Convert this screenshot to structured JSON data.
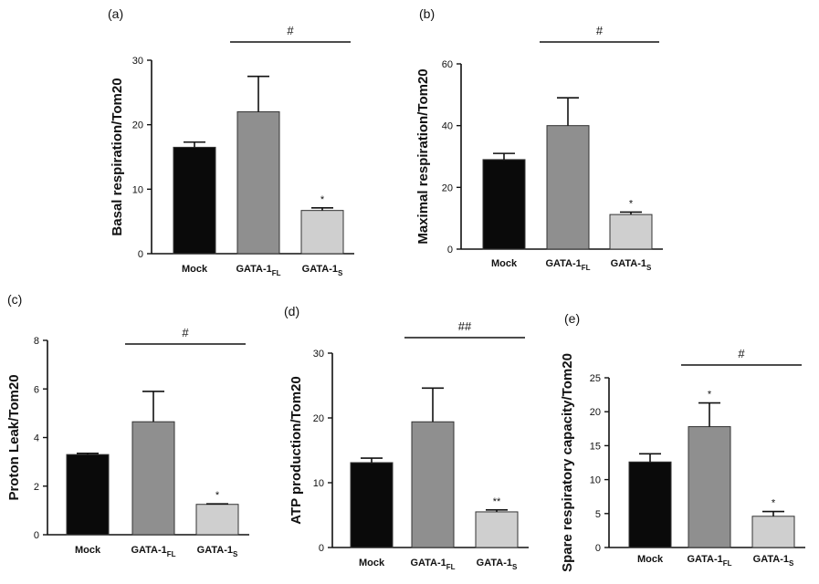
{
  "chart_data": [
    {
      "type": "bar",
      "panel": "(a)",
      "ylabel": "Basal respiration/Tom20",
      "ylim": [
        0,
        30
      ],
      "yticks": [
        0,
        10,
        20,
        30
      ],
      "categories": [
        "Mock",
        "GATA-1FL",
        "GATA-1S"
      ],
      "category_labels": [
        {
          "main": "Mock",
          "sub": ""
        },
        {
          "main": "GATA-1",
          "sub": "FL"
        },
        {
          "main": "GATA-1",
          "sub": "S"
        }
      ],
      "values": [
        16.5,
        22.0,
        6.7
      ],
      "errors": [
        0.8,
        5.5,
        0.4
      ],
      "bar_colors": [
        "#0a0a0a",
        "#8f8f8f",
        "#cfcfcf"
      ],
      "star_labels": [
        "",
        "",
        "*"
      ],
      "significance": {
        "label": "#",
        "from": 1,
        "to": 2
      }
    },
    {
      "type": "bar",
      "panel": "(b)",
      "ylabel": "Maximal respiration/Tom20",
      "ylim": [
        0,
        60
      ],
      "yticks": [
        0,
        20,
        40,
        60
      ],
      "categories": [
        "Mock",
        "GATA-1FL",
        "GATA-1S"
      ],
      "category_labels": [
        {
          "main": "Mock",
          "sub": ""
        },
        {
          "main": "GATA-1",
          "sub": "FL"
        },
        {
          "main": "GATA-1",
          "sub": "S"
        }
      ],
      "values": [
        29.0,
        40.0,
        11.2
      ],
      "errors": [
        2.0,
        9.0,
        0.8
      ],
      "bar_colors": [
        "#0a0a0a",
        "#8f8f8f",
        "#cfcfcf"
      ],
      "star_labels": [
        "",
        "",
        "*"
      ],
      "significance": {
        "label": "#",
        "from": 1,
        "to": 2
      }
    },
    {
      "type": "bar",
      "panel": "(c)",
      "ylabel": "Proton Leak/Tom20",
      "ylim": [
        0,
        8
      ],
      "yticks": [
        0,
        2,
        4,
        6,
        8
      ],
      "categories": [
        "Mock",
        "GATA-1FL",
        "GATA-1S"
      ],
      "category_labels": [
        {
          "main": "Mock",
          "sub": ""
        },
        {
          "main": "GATA-1",
          "sub": "FL"
        },
        {
          "main": "GATA-1",
          "sub": "S"
        }
      ],
      "values": [
        3.3,
        4.65,
        1.25
      ],
      "errors": [
        0.05,
        1.25,
        0.02
      ],
      "bar_colors": [
        "#0a0a0a",
        "#8f8f8f",
        "#cfcfcf"
      ],
      "star_labels": [
        "",
        "",
        "*"
      ],
      "significance": {
        "label": "#",
        "from": 1,
        "to": 2
      }
    },
    {
      "type": "bar",
      "panel": "(d)",
      "ylabel": "ATP production/Tom20",
      "ylim": [
        0,
        30
      ],
      "yticks": [
        0,
        10,
        20,
        30
      ],
      "categories": [
        "Mock",
        "GATA-1FL",
        "GATA-1S"
      ],
      "category_labels": [
        {
          "main": "Mock",
          "sub": ""
        },
        {
          "main": "GATA-1",
          "sub": "FL"
        },
        {
          "main": "GATA-1",
          "sub": "S"
        }
      ],
      "values": [
        13.1,
        19.4,
        5.5
      ],
      "errors": [
        0.7,
        5.2,
        0.3
      ],
      "bar_colors": [
        "#0a0a0a",
        "#8f8f8f",
        "#cfcfcf"
      ],
      "star_labels": [
        "",
        "",
        "**"
      ],
      "significance": {
        "label": "##",
        "from": 1,
        "to": 2
      }
    },
    {
      "type": "bar",
      "panel": "(e)",
      "ylabel": "Spare respiratory capacity/Tom20",
      "ylim": [
        0,
        25
      ],
      "yticks": [
        0,
        5,
        10,
        15,
        20,
        25
      ],
      "categories": [
        "Mock",
        "GATA-1FL",
        "GATA-1S"
      ],
      "category_labels": [
        {
          "main": "Mock",
          "sub": ""
        },
        {
          "main": "GATA-1",
          "sub": "FL"
        },
        {
          "main": "GATA-1",
          "sub": "S"
        }
      ],
      "values": [
        12.6,
        17.8,
        4.6
      ],
      "errors": [
        1.2,
        3.5,
        0.7
      ],
      "bar_colors": [
        "#0a0a0a",
        "#8f8f8f",
        "#cfcfcf"
      ],
      "star_labels": [
        "",
        "*",
        "*"
      ],
      "significance": {
        "label": "#",
        "from": 1,
        "to": 2
      }
    }
  ]
}
